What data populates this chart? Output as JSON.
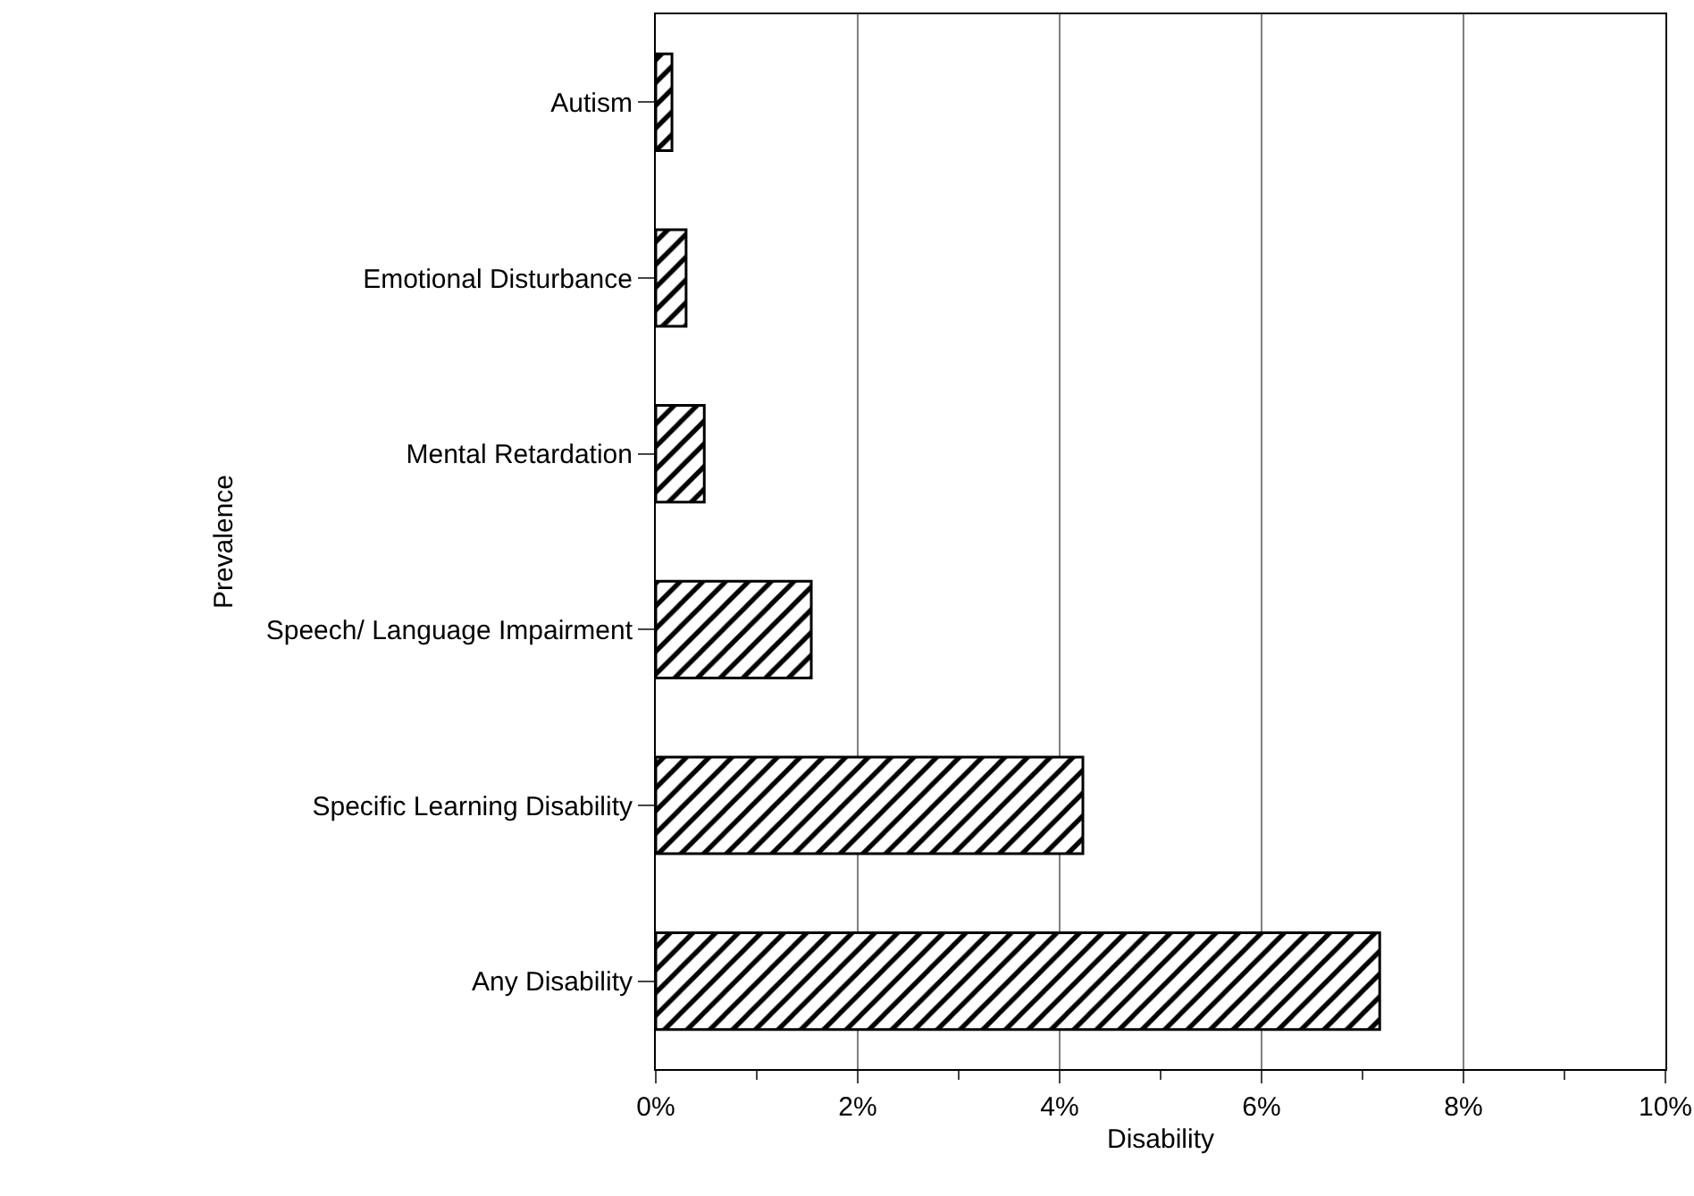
{
  "chart_data": {
    "type": "bar",
    "orientation": "horizontal",
    "xlabel": "Disability",
    "ylabel": "Prevalence",
    "categories": [
      "Autism",
      "Emotional Disturbance",
      "Mental Retardation",
      "Speech/ Language Impairment",
      "Specific Learning Disability",
      "Any Disability"
    ],
    "values": [
      0.16,
      0.3,
      0.48,
      1.54,
      4.23,
      7.17
    ],
    "color": "#000000",
    "xlim": [
      0,
      10
    ],
    "xticks": [
      {
        "value": 0,
        "label": "0%"
      },
      {
        "value": 2,
        "label": "2%"
      },
      {
        "value": 4,
        "label": "4%"
      },
      {
        "value": 6,
        "label": "6%"
      },
      {
        "value": 8,
        "label": "8%"
      },
      {
        "value": 10,
        "label": "10%"
      }
    ],
    "grid": "x",
    "legend": false
  }
}
